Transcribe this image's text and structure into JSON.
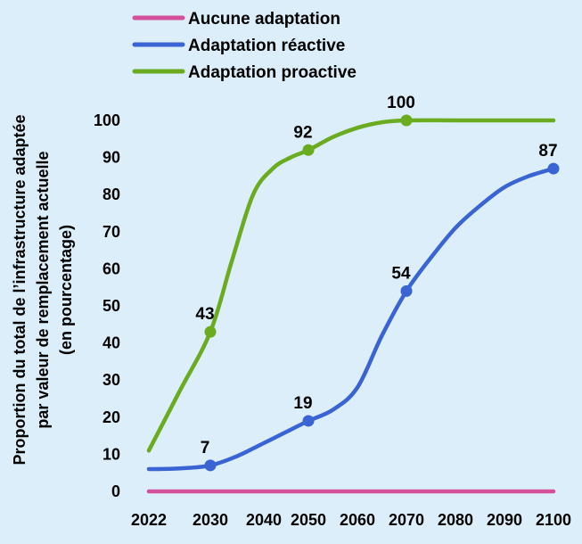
{
  "chart_data": {
    "type": "line",
    "ylabel_lines": [
      "Proportion du total de l’infrastructure adaptée",
      "par valeur de remplacement actuelle",
      "(en pourcentage)"
    ],
    "x_ticks": [
      "2022",
      "2030",
      "2040",
      "2050",
      "2060",
      "2070",
      "2080",
      "2090",
      "2100"
    ],
    "y_ticks": [
      "0",
      "10",
      "20",
      "30",
      "40",
      "50",
      "60",
      "70",
      "80",
      "90",
      "100"
    ],
    "ylim": [
      0,
      100
    ],
    "grid": false,
    "legend_position": "top-left",
    "series": [
      {
        "name": "Aucune adaptation",
        "color": "#d4509a",
        "x": [
          2022,
          2030,
          2040,
          2050,
          2060,
          2070,
          2080,
          2090,
          2100
        ],
        "y": [
          0,
          0,
          0,
          0,
          0,
          0,
          0,
          0,
          0
        ],
        "labeled_points": []
      },
      {
        "name": "Adaptation réactive",
        "color": "#3a63d4",
        "x": [
          2022,
          2026,
          2030,
          2035,
          2040,
          2045,
          2050,
          2055,
          2060,
          2065,
          2070,
          2075,
          2080,
          2085,
          2090,
          2095,
          2100
        ],
        "y": [
          6,
          6.2,
          7,
          9.5,
          13,
          16,
          19,
          22,
          28,
          42,
          54,
          63,
          71,
          77,
          82,
          85,
          87
        ],
        "labeled_points": [
          {
            "x": 2030,
            "y": 7,
            "label": "7"
          },
          {
            "x": 2050,
            "y": 19,
            "label": "19"
          },
          {
            "x": 2070,
            "y": 54,
            "label": "54"
          },
          {
            "x": 2100,
            "y": 87,
            "label": "87"
          }
        ]
      },
      {
        "name": "Adaptation proactive",
        "color": "#6aab1f",
        "x": [
          2022,
          2026,
          2030,
          2034,
          2038,
          2042,
          2046,
          2050,
          2055,
          2060,
          2065,
          2070,
          2080,
          2090,
          2100
        ],
        "y": [
          11,
          27,
          43,
          62,
          80,
          87,
          90,
          92,
          95.5,
          98,
          99.5,
          100,
          100,
          100,
          100
        ],
        "labeled_points": [
          {
            "x": 2030,
            "y": 43,
            "label": "43"
          },
          {
            "x": 2050,
            "y": 92,
            "label": "92"
          },
          {
            "x": 2070,
            "y": 100,
            "label": "100"
          }
        ]
      }
    ]
  }
}
